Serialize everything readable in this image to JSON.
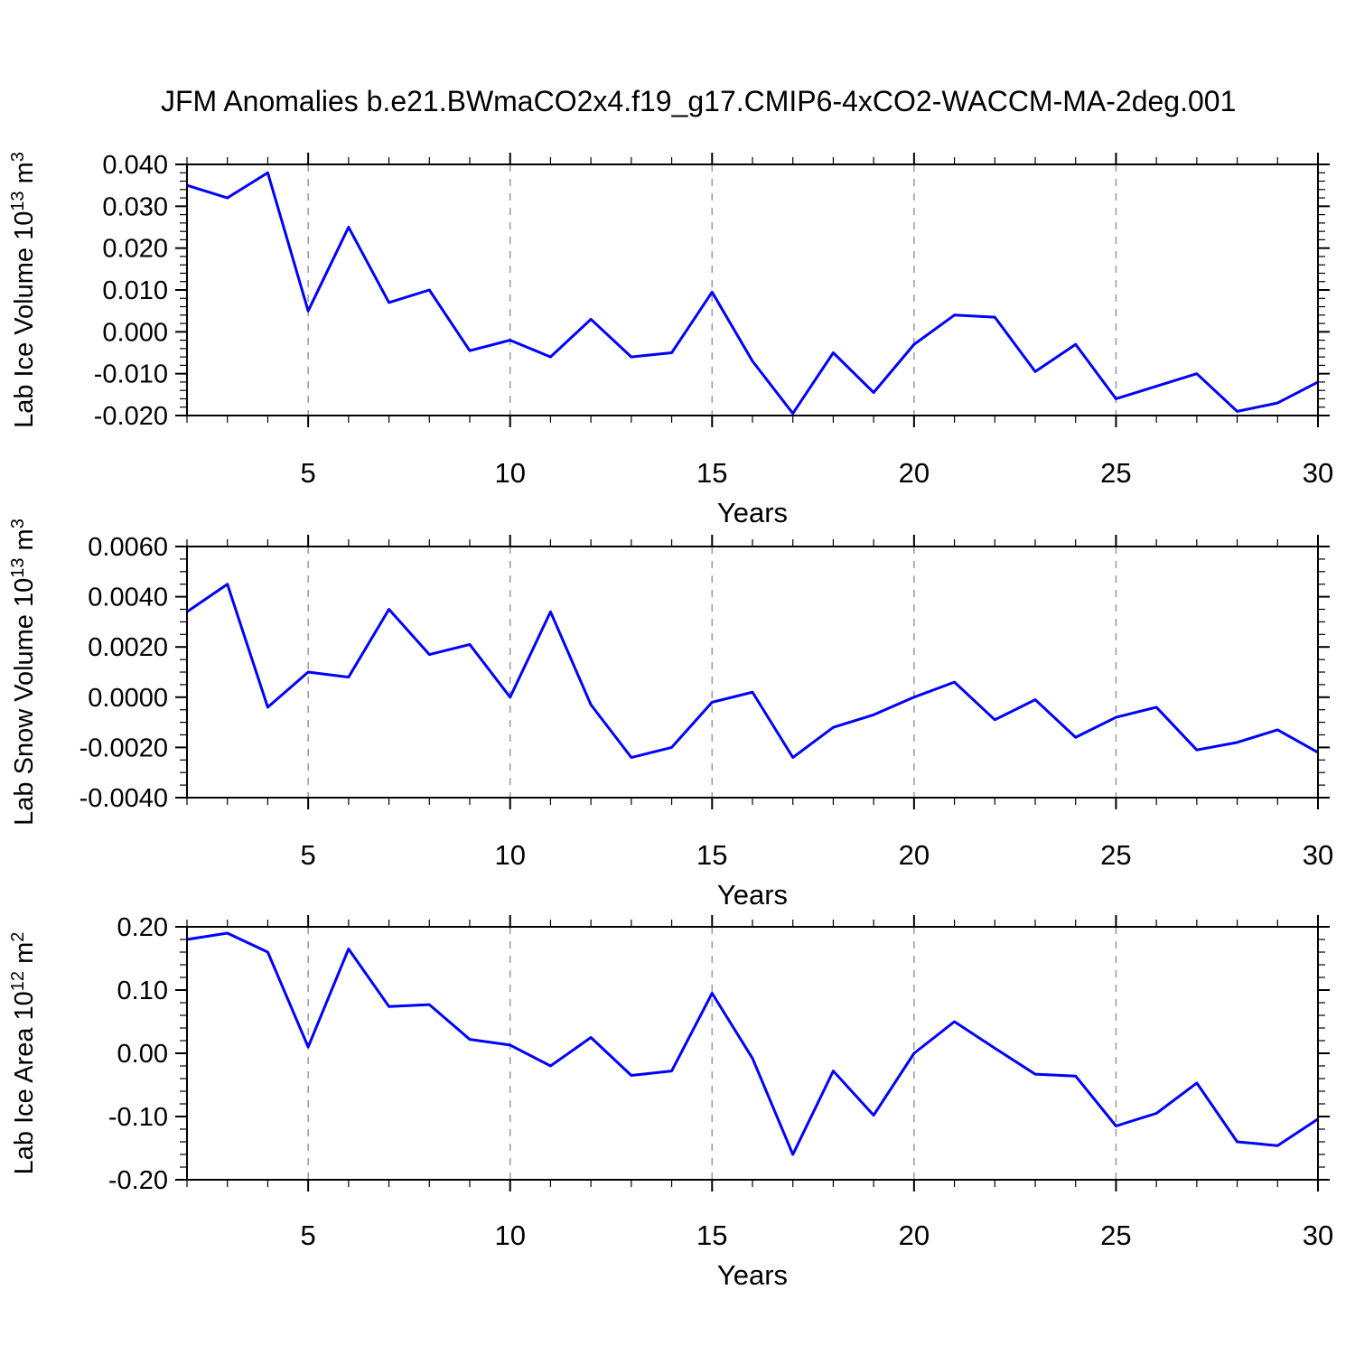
{
  "figure": {
    "title": "JFM Anomalies b.e21.BWmaCO2x4.f19_g17.CMIP6-4xCO2-WACCM-MA-2deg.001",
    "line_color": "#0000ff",
    "grid_color": "#999999",
    "frame_color": "#000000",
    "background_color": "#ffffff"
  },
  "chart_data": [
    {
      "type": "line",
      "panel": "top",
      "ylabel": "Lab Ice Volume 10^13 m^3",
      "ylabel_parts": [
        {
          "t": "Lab Ice Volume 10"
        },
        {
          "t": "13",
          "sup": true
        },
        {
          "t": " m"
        },
        {
          "t": "3",
          "sup": true
        }
      ],
      "xlabel": "Years",
      "x": [
        2,
        3,
        4,
        5,
        6,
        7,
        8,
        9,
        10,
        11,
        12,
        13,
        14,
        15,
        16,
        17,
        18,
        19,
        20,
        21,
        22,
        23,
        24,
        25,
        26,
        27,
        28,
        29,
        30
      ],
      "values": [
        0.035,
        0.032,
        0.038,
        0.005,
        0.025,
        0.007,
        0.01,
        -0.0045,
        -0.002,
        -0.006,
        0.003,
        -0.006,
        -0.005,
        0.0095,
        -0.007,
        -0.0195,
        -0.005,
        -0.0145,
        -0.003,
        0.004,
        0.0035,
        -0.0095,
        -0.003,
        -0.016,
        -0.013,
        -0.01,
        -0.019,
        -0.017,
        -0.012
      ],
      "xlim": [
        2,
        30
      ],
      "ylim": [
        -0.02,
        0.04
      ],
      "y_major_step": 0.01,
      "y_minor_step": 0.002,
      "y_tick_decimals": 3,
      "y_tick_labels": [
        "-0.020",
        "-0.010",
        "0.000",
        "0.010",
        "0.020",
        "0.030",
        "0.040"
      ],
      "x_major_ticks": [
        5,
        10,
        15,
        20,
        25,
        30
      ],
      "x_minor_step": 1,
      "x_gridlines": [
        5,
        10,
        15,
        20,
        25
      ],
      "grid": "vertical-dashed",
      "legend": "none"
    },
    {
      "type": "line",
      "panel": "middle",
      "ylabel": "Lab Snow Volume 10^13 m^3",
      "ylabel_parts": [
        {
          "t": "Lab Snow Volume 10"
        },
        {
          "t": "13",
          "sup": true
        },
        {
          "t": " m"
        },
        {
          "t": "3",
          "sup": true
        }
      ],
      "xlabel": "Years",
      "x": [
        2,
        3,
        4,
        5,
        6,
        7,
        8,
        9,
        10,
        11,
        12,
        13,
        14,
        15,
        16,
        17,
        18,
        19,
        20,
        21,
        22,
        23,
        24,
        25,
        26,
        27,
        28,
        29,
        30
      ],
      "values": [
        0.0034,
        0.0045,
        -0.0004,
        0.001,
        0.0008,
        0.0035,
        0.0017,
        0.0021,
        0.0,
        0.0034,
        -0.0003,
        -0.0024,
        -0.002,
        -0.0002,
        0.0002,
        -0.0024,
        -0.0012,
        -0.0007,
        0.0,
        0.0006,
        -0.0009,
        -0.0001,
        -0.0016,
        -0.0008,
        -0.0004,
        -0.0021,
        -0.0018,
        -0.0013,
        -0.0022
      ],
      "xlim": [
        2,
        30
      ],
      "ylim": [
        -0.004,
        0.006
      ],
      "y_major_step": 0.002,
      "y_minor_step": 0.0005,
      "y_tick_decimals": 4,
      "y_tick_labels": [
        "-0.0040",
        "-0.0020",
        "0.0000",
        "0.0020",
        "0.0040",
        "0.0060"
      ],
      "x_major_ticks": [
        5,
        10,
        15,
        20,
        25,
        30
      ],
      "x_minor_step": 1,
      "x_gridlines": [
        5,
        10,
        15,
        20,
        25
      ],
      "grid": "vertical-dashed",
      "legend": "none"
    },
    {
      "type": "line",
      "panel": "bottom",
      "ylabel": "Lab Ice Area 10^12 m^2",
      "ylabel_parts": [
        {
          "t": "Lab Ice Area 10"
        },
        {
          "t": "12",
          "sup": true
        },
        {
          "t": " m"
        },
        {
          "t": "2",
          "sup": true
        }
      ],
      "xlabel": "Years",
      "x": [
        2,
        3,
        4,
        5,
        6,
        7,
        8,
        9,
        10,
        11,
        12,
        13,
        14,
        15,
        16,
        17,
        18,
        19,
        20,
        21,
        22,
        23,
        24,
        25,
        26,
        27,
        28,
        29,
        30
      ],
      "values": [
        0.18,
        0.19,
        0.16,
        0.01,
        0.165,
        0.074,
        0.077,
        0.022,
        0.013,
        -0.02,
        0.025,
        -0.035,
        -0.028,
        0.095,
        -0.008,
        -0.16,
        -0.028,
        -0.098,
        0.0,
        0.05,
        0.008,
        -0.033,
        -0.036,
        -0.115,
        -0.095,
        -0.047,
        -0.14,
        -0.146,
        -0.104
      ],
      "xlim": [
        2,
        30
      ],
      "ylim": [
        -0.2,
        0.2
      ],
      "y_major_step": 0.1,
      "y_minor_step": 0.02,
      "y_tick_decimals": 2,
      "y_tick_labels": [
        "-0.20",
        "-0.10",
        "0.00",
        "0.10",
        "0.20"
      ],
      "x_major_ticks": [
        5,
        10,
        15,
        20,
        25,
        30
      ],
      "x_minor_step": 1,
      "x_gridlines": [
        5,
        10,
        15,
        20,
        25
      ],
      "grid": "vertical-dashed",
      "legend": "none"
    }
  ]
}
